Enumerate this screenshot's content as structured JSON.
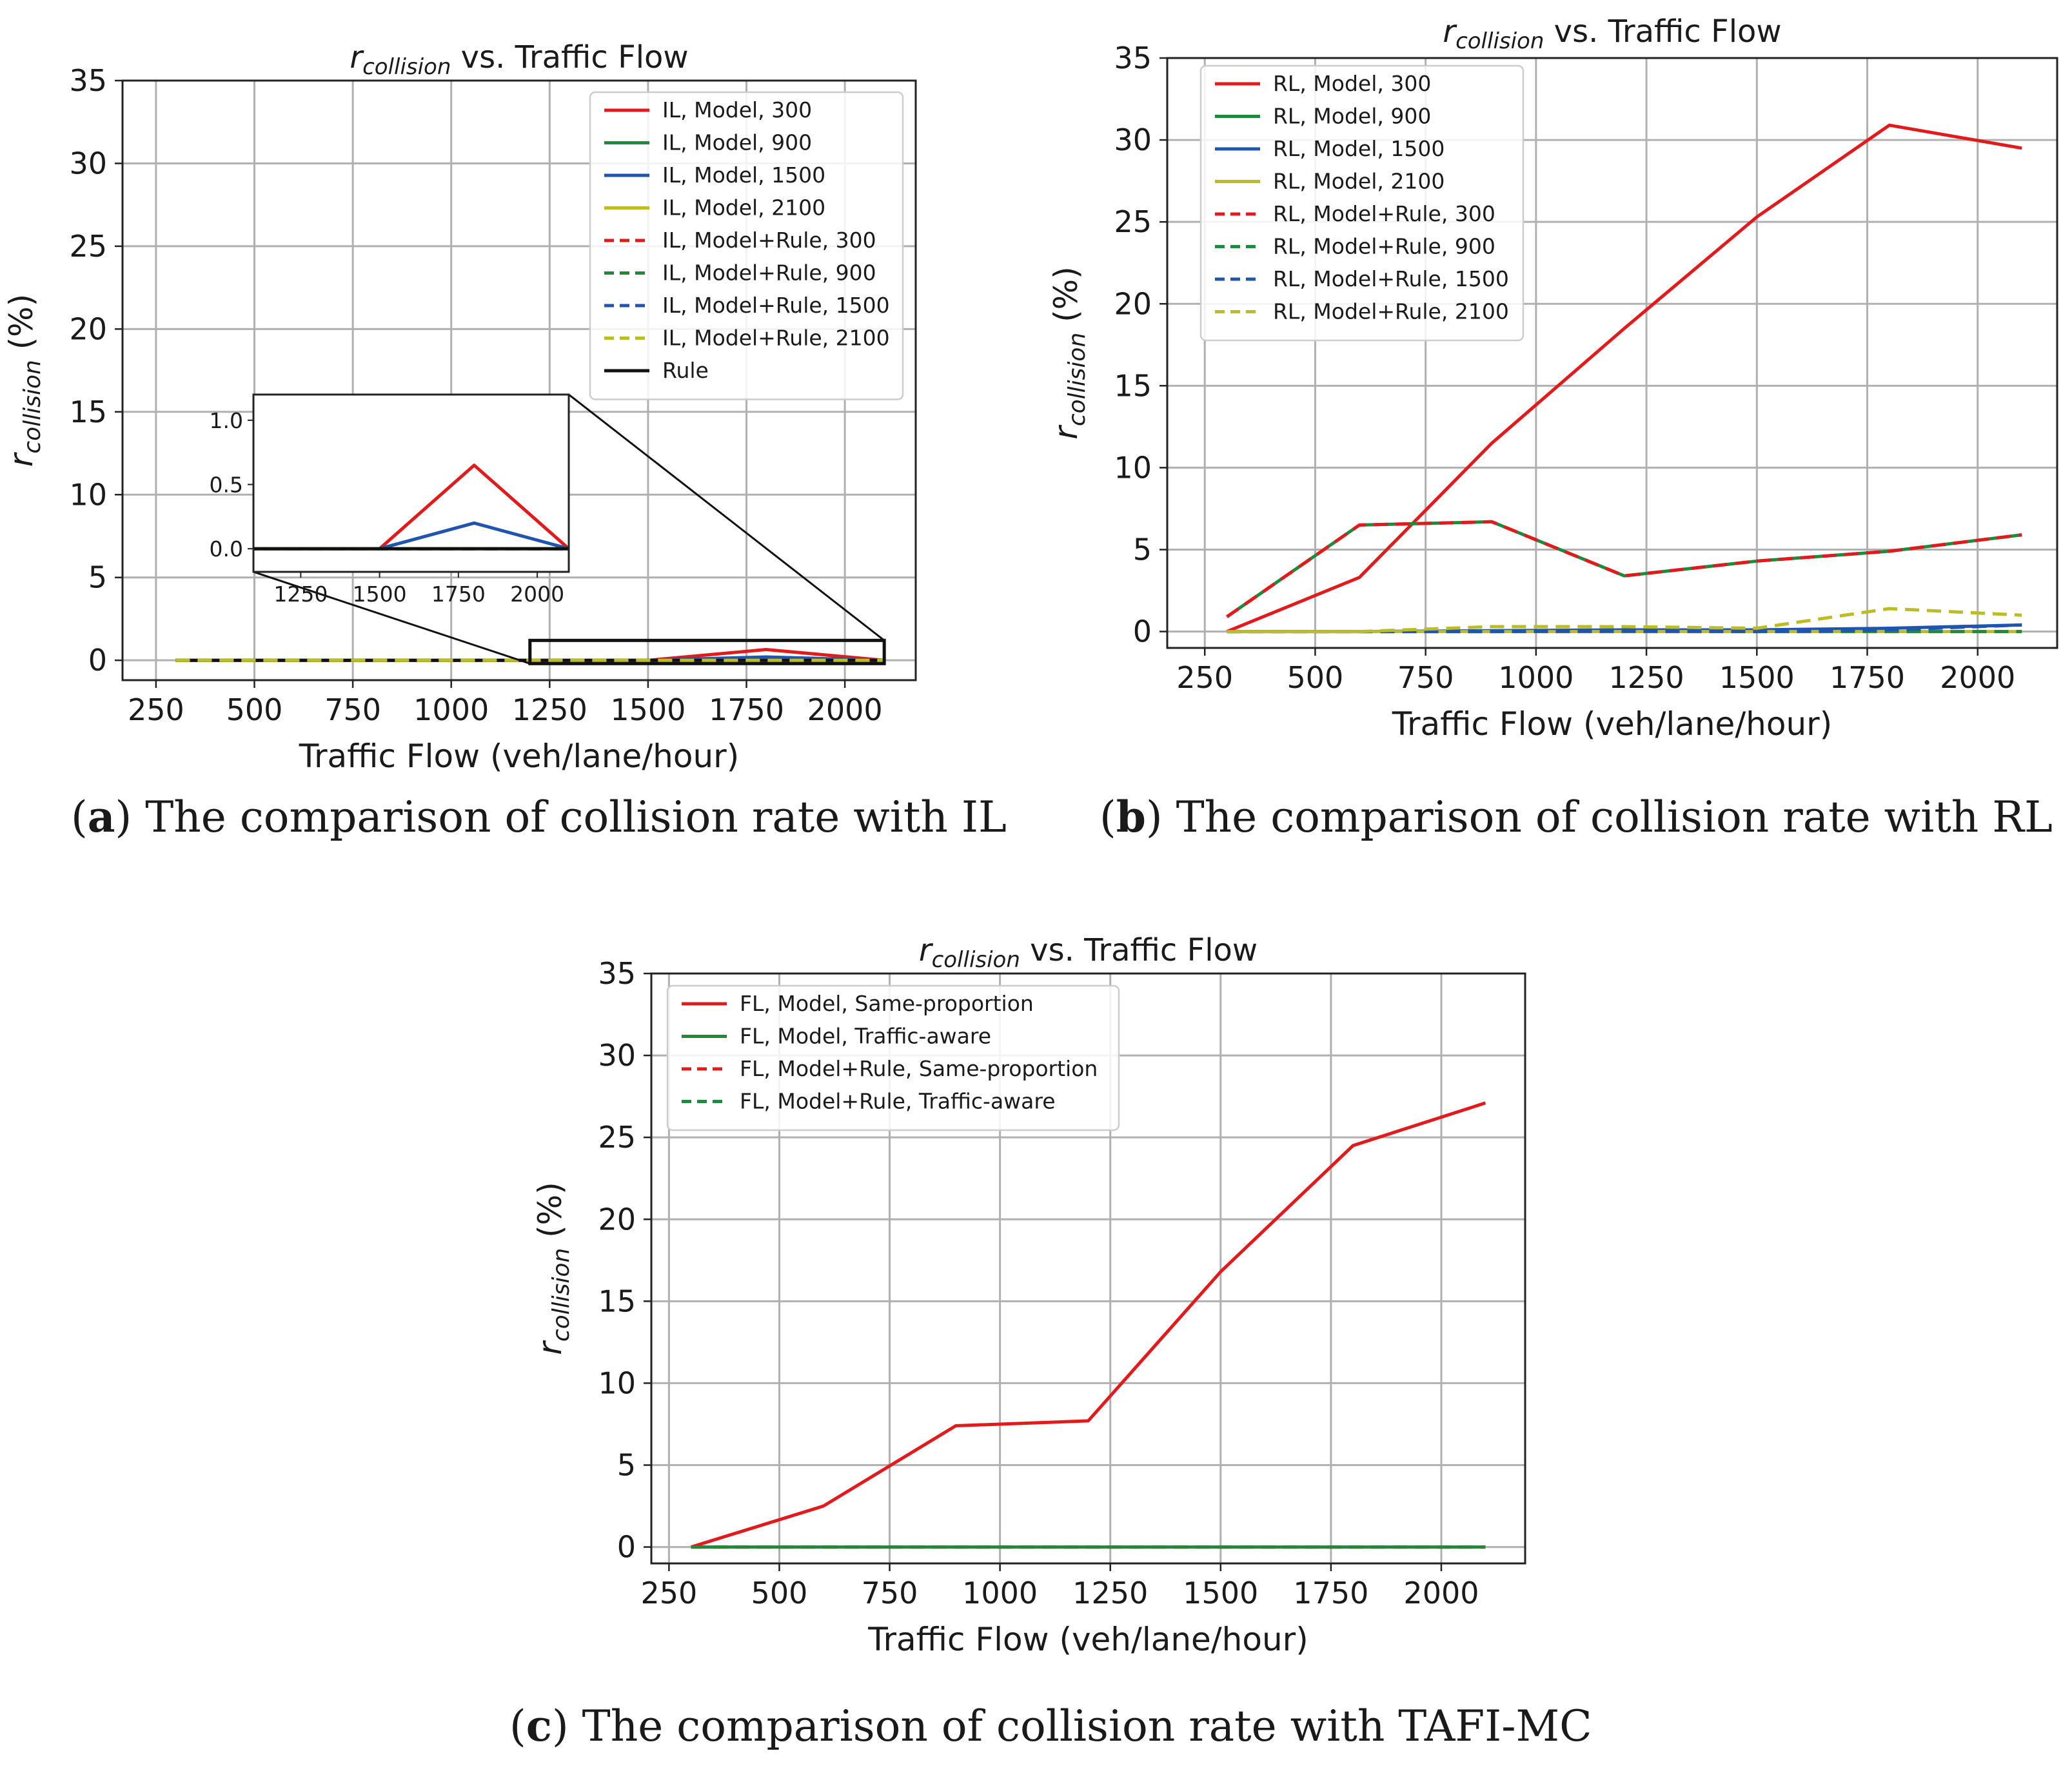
{
  "figure": {
    "captions": [
      {
        "tag": "a",
        "text": "The comparison of collision rate with IL"
      },
      {
        "tag": "b",
        "text": "The comparison of collision rate with RL"
      },
      {
        "tag": "c",
        "text": "The comparison of collision rate with TAFI-MC"
      }
    ]
  },
  "chart_data": [
    {
      "id": "a",
      "type": "line",
      "title_symbol": "r",
      "title_subscript": "collision",
      "title_rest": " vs. Traffic Flow",
      "xlabel": "Traffic Flow (veh/lane/hour)",
      "ylabel_symbol": "r",
      "ylabel_subscript": "collision",
      "ylabel_rest": " (%)",
      "xlim": [
        165,
        2180
      ],
      "ylim": [
        -1.2,
        35
      ],
      "xticks": [
        250,
        500,
        750,
        1000,
        1250,
        1500,
        1750,
        2000
      ],
      "yticks": [
        0,
        5,
        10,
        15,
        20,
        25,
        30,
        35
      ],
      "grid": true,
      "legend_position": "upper-right",
      "x": [
        300,
        600,
        900,
        1200,
        1500,
        1800,
        2100
      ],
      "series": [
        {
          "name": "IL, Model, 300",
          "color": "#e31a1c",
          "dash": "solid",
          "values": [
            0,
            0,
            0,
            0,
            0,
            0.65,
            0
          ]
        },
        {
          "name": "IL, Model, 900",
          "color": "#1e8a3c",
          "dash": "solid",
          "values": [
            0,
            0,
            0,
            0,
            0,
            0,
            0
          ]
        },
        {
          "name": "IL, Model, 1500",
          "color": "#1f55b0",
          "dash": "solid",
          "values": [
            0,
            0,
            0,
            0,
            0,
            0.2,
            0
          ]
        },
        {
          "name": "IL, Model, 2100",
          "color": "#bcbd22",
          "dash": "solid",
          "values": [
            0,
            0,
            0,
            0,
            0,
            0,
            0
          ]
        },
        {
          "name": "IL, Model+Rule, 300",
          "color": "#e31a1c",
          "dash": "dashed",
          "values": [
            0,
            0,
            0,
            0,
            0,
            0,
            0
          ]
        },
        {
          "name": "IL, Model+Rule, 900",
          "color": "#1e8a3c",
          "dash": "dashed",
          "values": [
            0,
            0,
            0,
            0,
            0,
            0,
            0
          ]
        },
        {
          "name": "IL, Model+Rule, 1500",
          "color": "#1f55b0",
          "dash": "dashed",
          "values": [
            0,
            0,
            0,
            0,
            0,
            0,
            0
          ]
        },
        {
          "name": "IL, Model+Rule, 2100",
          "color": "#bcbd22",
          "dash": "dashed",
          "values": [
            0,
            0,
            0,
            0,
            0,
            0,
            0
          ]
        },
        {
          "name": "Rule",
          "color": "#111111",
          "dash": "solid",
          "values": [
            0,
            0,
            0,
            0,
            0,
            0,
            0
          ]
        }
      ],
      "inset": {
        "xlim": [
          1100,
          2100
        ],
        "ylim": [
          -0.18,
          1.2
        ],
        "xticks": [
          1250,
          1500,
          1750,
          2000
        ],
        "yticks": [
          0.0,
          0.5,
          1.0
        ],
        "ytick_labels": [
          "0.0",
          "0.5",
          "1.0"
        ],
        "zoom_region_x": [
          1200,
          2100
        ],
        "zoom_region_y": [
          -0.2,
          1.2
        ]
      }
    },
    {
      "id": "b",
      "type": "line",
      "title_symbol": "r",
      "title_subscript": "collision",
      "title_rest": " vs. Traffic Flow",
      "xlabel": "Traffic Flow (veh/lane/hour)",
      "ylabel_symbol": "r",
      "ylabel_subscript": "collision",
      "ylabel_rest": " (%)",
      "xlim": [
        165,
        2180
      ],
      "ylim": [
        -1,
        35
      ],
      "xticks": [
        250,
        500,
        750,
        1000,
        1250,
        1500,
        1750,
        2000
      ],
      "yticks": [
        0,
        5,
        10,
        15,
        20,
        25,
        30,
        35
      ],
      "grid": true,
      "legend_position": "upper-left",
      "x": [
        300,
        600,
        900,
        1200,
        1500,
        1800,
        2100
      ],
      "series": [
        {
          "name": "RL, Model, 300",
          "color": "#e31a1c",
          "dash": "solid",
          "values": [
            0,
            3.3,
            11.5,
            18.5,
            25.3,
            30.9,
            29.5
          ]
        },
        {
          "name": "RL, Model, 900",
          "color": "#1e8a3c",
          "dash": "solid",
          "values": [
            0.9,
            6.5,
            6.7,
            3.4,
            4.3,
            4.9,
            5.9
          ]
        },
        {
          "name": "RL, Model, 1500",
          "color": "#1f55b0",
          "dash": "solid",
          "values": [
            0,
            0,
            0.05,
            0.1,
            0.1,
            0.2,
            0.4
          ]
        },
        {
          "name": "RL, Model, 2100",
          "color": "#bcbd22",
          "dash": "solid",
          "values": [
            0,
            0,
            0,
            0,
            0,
            0,
            0
          ]
        },
        {
          "name": "RL, Model+Rule, 300",
          "color": "#e31a1c",
          "dash": "dashed",
          "values": [
            0.9,
            6.5,
            6.7,
            3.4,
            4.3,
            4.9,
            5.9
          ]
        },
        {
          "name": "RL, Model+Rule, 900",
          "color": "#1e8a3c",
          "dash": "dashed",
          "values": [
            0,
            0,
            0,
            0,
            0,
            0,
            0
          ]
        },
        {
          "name": "RL, Model+Rule, 1500",
          "color": "#1f55b0",
          "dash": "dashed",
          "values": [
            0,
            0,
            0,
            0.05,
            0,
            0.1,
            0.4
          ]
        },
        {
          "name": "RL, Model+Rule, 2100",
          "color": "#bcbd22",
          "dash": "dashed",
          "values": [
            0,
            0,
            0.3,
            0.3,
            0.2,
            1.4,
            1.0
          ]
        }
      ]
    },
    {
      "id": "c",
      "type": "line",
      "title_symbol": "r",
      "title_subscript": "collision",
      "title_rest": " vs. Traffic Flow",
      "xlabel": "Traffic Flow (veh/lane/hour)",
      "ylabel_symbol": "r",
      "ylabel_subscript": "collision",
      "ylabel_rest": " (%)",
      "xlim": [
        210,
        2190
      ],
      "ylim": [
        -1,
        35
      ],
      "xticks": [
        250,
        500,
        750,
        1000,
        1250,
        1500,
        1750,
        2000
      ],
      "yticks": [
        0,
        5,
        10,
        15,
        20,
        25,
        30,
        35
      ],
      "grid": true,
      "legend_position": "upper-left",
      "x": [
        300,
        600,
        900,
        1200,
        1500,
        1800,
        2100
      ],
      "series": [
        {
          "name": "FL, Model, Same-proportion",
          "color": "#e31a1c",
          "dash": "solid",
          "values": [
            0,
            2.5,
            7.4,
            7.7,
            16.8,
            24.5,
            27.1
          ]
        },
        {
          "name": "FL, Model, Traffic-aware",
          "color": "#1e8a3c",
          "dash": "solid",
          "values": [
            0,
            0,
            0,
            0,
            0,
            0,
            0
          ]
        },
        {
          "name": "FL, Model+Rule, Same-proportion",
          "color": "#e31a1c",
          "dash": "dashed",
          "values": [
            0,
            0,
            0,
            0,
            0,
            0,
            0
          ]
        },
        {
          "name": "FL, Model+Rule, Traffic-aware",
          "color": "#1e8a3c",
          "dash": "dashed",
          "values": [
            0,
            0,
            0,
            0,
            0,
            0,
            0
          ]
        }
      ]
    }
  ]
}
